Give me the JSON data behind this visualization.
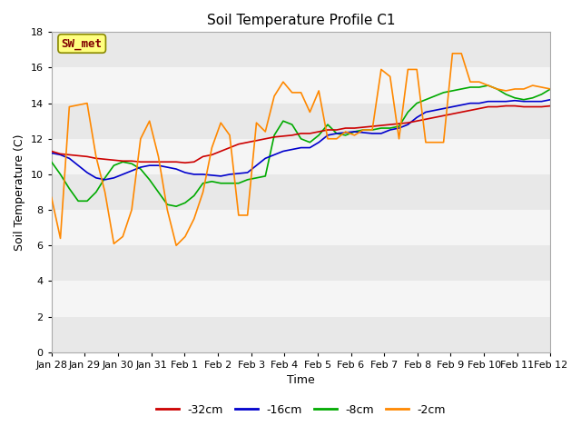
{
  "title": "Soil Temperature Profile C1",
  "xlabel": "Time",
  "ylabel": "Soil Temperature (C)",
  "ylim": [
    0,
    18
  ],
  "yticks": [
    0,
    2,
    4,
    6,
    8,
    10,
    12,
    14,
    16,
    18
  ],
  "background_color": "#ffffff",
  "plot_bg_color": "#ffffff",
  "band_colors": [
    "#e8e8e8",
    "#f5f5f5"
  ],
  "annotation_text": "SW_met",
  "annotation_color": "#800000",
  "annotation_bg": "#ffff80",
  "annotation_edge": "#888800",
  "x_labels": [
    "Jan 28",
    "Jan 29",
    "Jan 30",
    "Jan 31",
    "Feb 1",
    "Feb 2",
    "Feb 3",
    "Feb 4",
    "Feb 5",
    "Feb 6",
    "Feb 7",
    "Feb 8",
    "Feb 9",
    "Feb 10",
    "Feb 11",
    "Feb 12"
  ],
  "series": {
    "red_32cm": [
      11.3,
      11.15,
      11.1,
      11.05,
      11.0,
      10.9,
      10.85,
      10.8,
      10.75,
      10.75,
      10.7,
      10.7,
      10.7,
      10.7,
      10.7,
      10.65,
      10.7,
      11.0,
      11.1,
      11.3,
      11.5,
      11.7,
      11.8,
      11.9,
      12.0,
      12.1,
      12.15,
      12.2,
      12.3,
      12.3,
      12.4,
      12.5,
      12.5,
      12.6,
      12.6,
      12.65,
      12.7,
      12.75,
      12.8,
      12.85,
      12.9,
      13.0,
      13.1,
      13.2,
      13.3,
      13.4,
      13.5,
      13.6,
      13.7,
      13.8,
      13.8,
      13.85,
      13.85,
      13.8,
      13.8,
      13.8,
      13.85
    ],
    "blue_16cm": [
      11.2,
      11.1,
      10.9,
      10.5,
      10.1,
      9.8,
      9.7,
      9.8,
      10.0,
      10.2,
      10.4,
      10.5,
      10.5,
      10.4,
      10.3,
      10.1,
      10.0,
      10.0,
      9.95,
      9.9,
      10.0,
      10.05,
      10.1,
      10.5,
      10.9,
      11.1,
      11.3,
      11.4,
      11.5,
      11.5,
      11.8,
      12.2,
      12.3,
      12.35,
      12.4,
      12.35,
      12.3,
      12.3,
      12.5,
      12.6,
      12.8,
      13.2,
      13.5,
      13.6,
      13.7,
      13.8,
      13.9,
      14.0,
      14.0,
      14.1,
      14.1,
      14.1,
      14.15,
      14.1,
      14.1,
      14.1,
      14.2
    ],
    "green_8cm": [
      10.7,
      10.0,
      9.2,
      8.5,
      8.5,
      9.0,
      9.8,
      10.5,
      10.7,
      10.6,
      10.3,
      9.7,
      9.0,
      8.3,
      8.2,
      8.4,
      8.8,
      9.5,
      9.6,
      9.5,
      9.5,
      9.5,
      9.7,
      9.8,
      9.9,
      12.2,
      13.0,
      12.8,
      12.0,
      11.8,
      12.2,
      12.8,
      12.3,
      12.2,
      12.4,
      12.5,
      12.5,
      12.6,
      12.6,
      12.7,
      13.5,
      14.0,
      14.2,
      14.4,
      14.6,
      14.7,
      14.8,
      14.9,
      14.9,
      15.0,
      14.8,
      14.5,
      14.3,
      14.2,
      14.3,
      14.5,
      14.8
    ],
    "orange_2cm": [
      8.7,
      6.4,
      13.8,
      13.9,
      14.0,
      11.0,
      9.0,
      6.1,
      6.5,
      8.0,
      12.0,
      13.0,
      11.0,
      8.0,
      6.0,
      6.5,
      7.5,
      9.0,
      11.5,
      12.9,
      12.2,
      7.7,
      7.7,
      12.9,
      12.4,
      14.4,
      15.2,
      14.6,
      14.6,
      13.5,
      14.7,
      12.0,
      12.0,
      12.4,
      12.2,
      12.5,
      12.5,
      15.9,
      15.5,
      12.0,
      15.9,
      15.9,
      11.8,
      11.8,
      11.8,
      16.8,
      16.8,
      15.2,
      15.2,
      15.0,
      14.8,
      14.7,
      14.8,
      14.8,
      15.0,
      14.9,
      14.8
    ]
  },
  "colors": {
    "red_32cm": "#cc0000",
    "blue_16cm": "#0000cc",
    "green_8cm": "#00aa00",
    "orange_2cm": "#ff8800"
  },
  "legend": [
    {
      "label": "-32cm",
      "color": "#cc0000"
    },
    {
      "label": "-16cm",
      "color": "#0000cc"
    },
    {
      "label": "-8cm",
      "color": "#00aa00"
    },
    {
      "label": "-2cm",
      "color": "#ff8800"
    }
  ]
}
